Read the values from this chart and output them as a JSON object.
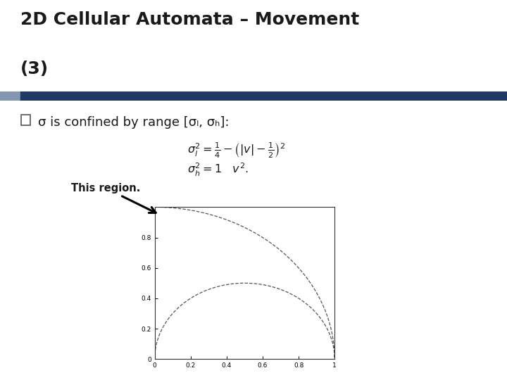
{
  "title_line1": "2D Cellular Automata – Movement",
  "title_line2": "(3)",
  "bullet_text": "σ is confined by range [σₗ, σₕ]:",
  "annotation_text": "This region.",
  "bg_color": "#ffffff",
  "header_bar_left_color": "#8497B0",
  "header_bar_right_color": "#1F3864",
  "line_color": "#555555",
  "fig_width": 7.2,
  "fig_height": 5.4,
  "plot_xlim": [
    0,
    1
  ],
  "plot_ylim": [
    0,
    1.0
  ],
  "plot_xticks": [
    0,
    0.2,
    0.4,
    0.6,
    0.8,
    1
  ],
  "plot_yticks": [
    0,
    0.2,
    0.4,
    0.6,
    0.8
  ]
}
